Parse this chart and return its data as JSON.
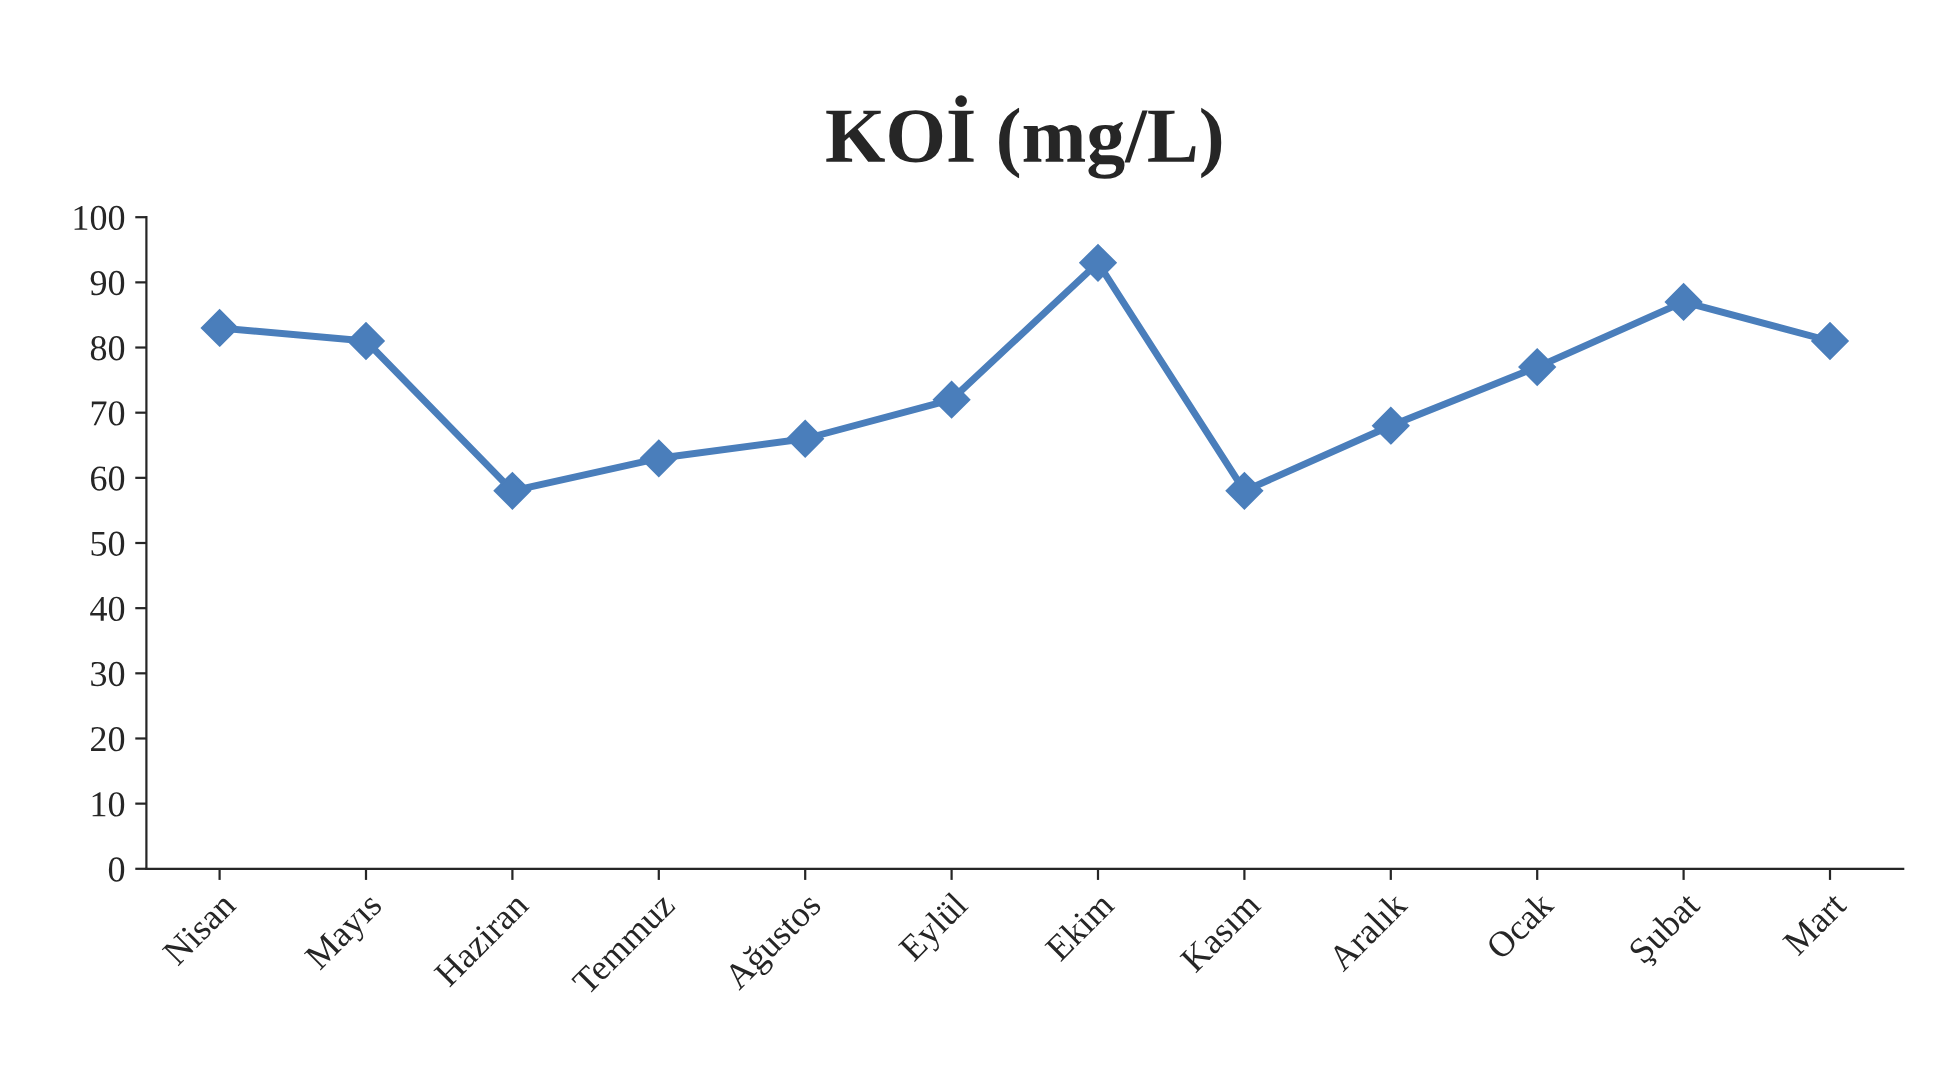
{
  "chart_data": {
    "type": "line",
    "title": "KOİ (mg/L)",
    "categories": [
      "Nisan",
      "Mayıs",
      "Haziran",
      "Temmuz",
      "Ağustos",
      "Eylül",
      "Ekim",
      "Kasım",
      "Aralık",
      "Ocak",
      "Şubat",
      "Mart"
    ],
    "series": [
      {
        "color": "#4a7ebb",
        "values": [
          83,
          81,
          58,
          63,
          66,
          72,
          93,
          58,
          68,
          77,
          87,
          81
        ]
      }
    ],
    "ylim": [
      0,
      100
    ],
    "yticks": [
      0,
      10,
      20,
      30,
      40,
      50,
      60,
      70,
      80,
      90,
      100
    ],
    "marker": "diamond",
    "line_style": "solid",
    "grid": false,
    "legend": false
  }
}
